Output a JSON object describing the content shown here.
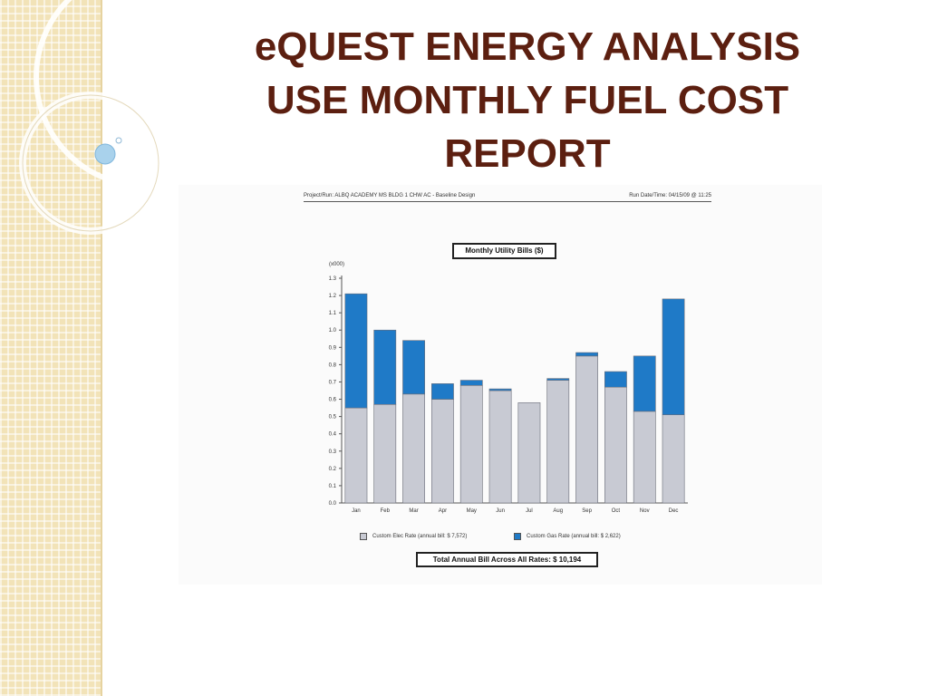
{
  "slide": {
    "title_lines": [
      "eQUEST ENERGY ANALYSIS",
      "USE MONTHLY FUEL COST",
      "REPORT"
    ]
  },
  "colors": {
    "title": "#5c1f10",
    "elec": "#c8cad3",
    "gas": "#1f7ac7",
    "band": "#f2e3b8"
  },
  "report": {
    "project_run": "Project/Run:  ALBQ ACADEMY MS BLDG 1 CHW AC - Baseline Design",
    "run_datetime": "Run Date/Time:  04/15/09 @ 11:25",
    "total": "Total Annual Bill Across All Rates:  $ 10,194"
  },
  "chart_data": {
    "type": "bar",
    "stacked": true,
    "title": "Monthly Utility Bills ($)",
    "y_unit": "(x000)",
    "categories": [
      "Jan",
      "Feb",
      "Mar",
      "Apr",
      "May",
      "Jun",
      "Jul",
      "Aug",
      "Sep",
      "Oct",
      "Nov",
      "Dec"
    ],
    "series": [
      {
        "name": "Custom Elec Rate (annual bill: $ 7,572)",
        "color": "#c8cad3",
        "values": [
          0.55,
          0.57,
          0.63,
          0.6,
          0.68,
          0.65,
          0.58,
          0.71,
          0.85,
          0.67,
          0.53,
          0.51
        ]
      },
      {
        "name": "Custom Gas Rate (annual bill: $ 2,622)",
        "color": "#1f7ac7",
        "values": [
          0.66,
          0.43,
          0.31,
          0.09,
          0.03,
          0.01,
          0.0,
          0.01,
          0.02,
          0.09,
          0.32,
          0.67
        ]
      }
    ],
    "ylim": [
      0,
      1.3
    ],
    "yticks": [
      "0.0",
      "0.1",
      "0.2",
      "0.3",
      "0.4",
      "0.5",
      "0.6",
      "0.7",
      "0.8",
      "0.9",
      "1.0",
      "1.1",
      "1.2",
      "1.3"
    ],
    "grid": false,
    "legend_position": "bottom"
  }
}
